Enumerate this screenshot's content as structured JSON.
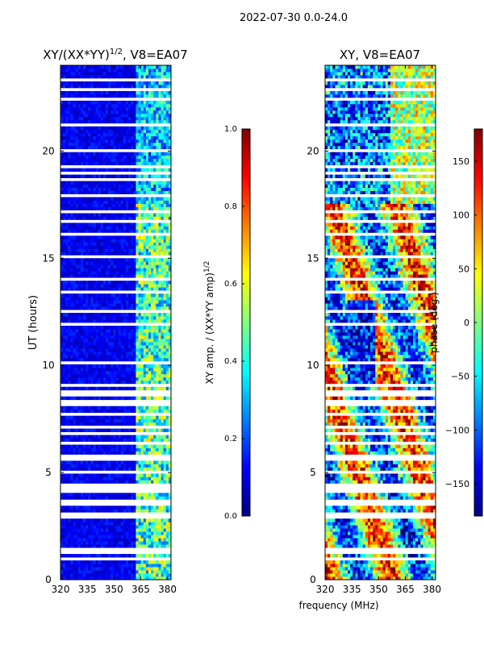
{
  "suptitle": "2022-07-30 0.0-24.0",
  "chart_data": [
    {
      "type": "heatmap",
      "title": "XY/(XX*YY)",
      "title_exp": "1/2",
      "title_suffix": ", V8=EA07",
      "xlabel": "",
      "ylabel": "UT (hours)",
      "xlim": [
        320,
        382
      ],
      "ylim": [
        0,
        24
      ],
      "xticks": [
        320,
        335,
        350,
        365,
        380
      ],
      "yticks": [
        0,
        5,
        10,
        15,
        20
      ],
      "bright_band_mhz": [
        362,
        382
      ],
      "colorbar": {
        "label": "XY amp. / (XX*YY amp)",
        "label_exp": "1/2",
        "range": [
          0.0,
          1.0
        ],
        "ticks": [
          "0.0",
          "0.2",
          "0.4",
          "0.6",
          "0.8",
          "1.0"
        ],
        "colormap": "jet"
      }
    },
    {
      "type": "heatmap",
      "title": "XY, V8=EA07",
      "xlabel": "frequency (MHz)",
      "ylabel": "",
      "xlim": [
        320,
        382
      ],
      "ylim": [
        0,
        24
      ],
      "xticks": [
        320,
        335,
        350,
        365,
        380
      ],
      "yticks": [
        0,
        5,
        10,
        15,
        20
      ],
      "colorbar": {
        "label": "phase (deg.)",
        "range": [
          -180,
          180
        ],
        "ticks": [
          "150",
          "100",
          "50",
          "0",
          "−50",
          "−100",
          "−150"
        ],
        "tick_values": [
          150,
          100,
          50,
          0,
          -50,
          -100,
          -150
        ],
        "colormap": "jet"
      }
    }
  ],
  "blank_ut_hours": [
    0.6,
    0.95,
    1.3,
    1.4,
    2.9,
    3.1,
    3.55,
    3.65,
    4.1,
    4.3,
    4.45,
    5.0,
    5.6,
    5.75,
    6.35,
    6.8,
    7.15,
    7.7,
    8.2,
    8.35,
    8.6,
    8.75,
    9.05,
    10.15,
    11.1,
    11.4,
    11.95,
    12.45,
    12.55,
    13.05,
    13.45,
    14.0,
    15.1,
    16.15,
    16.35,
    16.75,
    17.1,
    17.2,
    17.4,
    17.55,
    17.9,
    18.3,
    18.65,
    19.0,
    19.3,
    19.65,
    20.05,
    20.4,
    20.85,
    21.25,
    21.6,
    22.05,
    22.2,
    22.45,
    22.9,
    23.35
  ]
}
